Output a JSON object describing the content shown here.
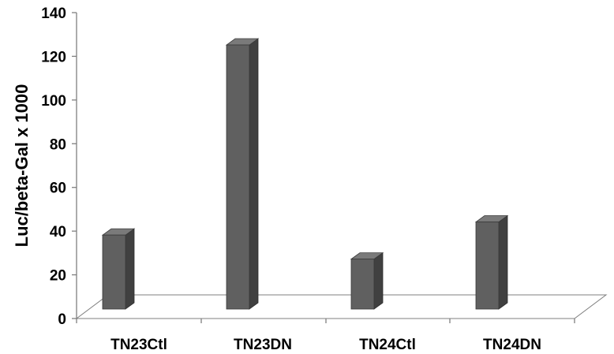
{
  "chart_data": {
    "type": "bar",
    "style": "3d-column",
    "categories": [
      "TN23Ctl",
      "TN23DN",
      "TN24Ctl",
      "TN24DN"
    ],
    "values": [
      40,
      127,
      29,
      46
    ],
    "ylabel": "Luc/beta-Gal x 1000",
    "ylim": [
      0,
      140
    ],
    "yticks": [
      "0",
      "20",
      "40",
      "60",
      "80",
      "100",
      "120",
      "140"
    ],
    "grid": false,
    "legend": "none"
  },
  "colors": {
    "bar_front": "#606060",
    "bar_side": "#404040",
    "bar_top": "#7a7a7a",
    "floor_line": "#7f7f7f",
    "axis": "#7f7f7f"
  }
}
